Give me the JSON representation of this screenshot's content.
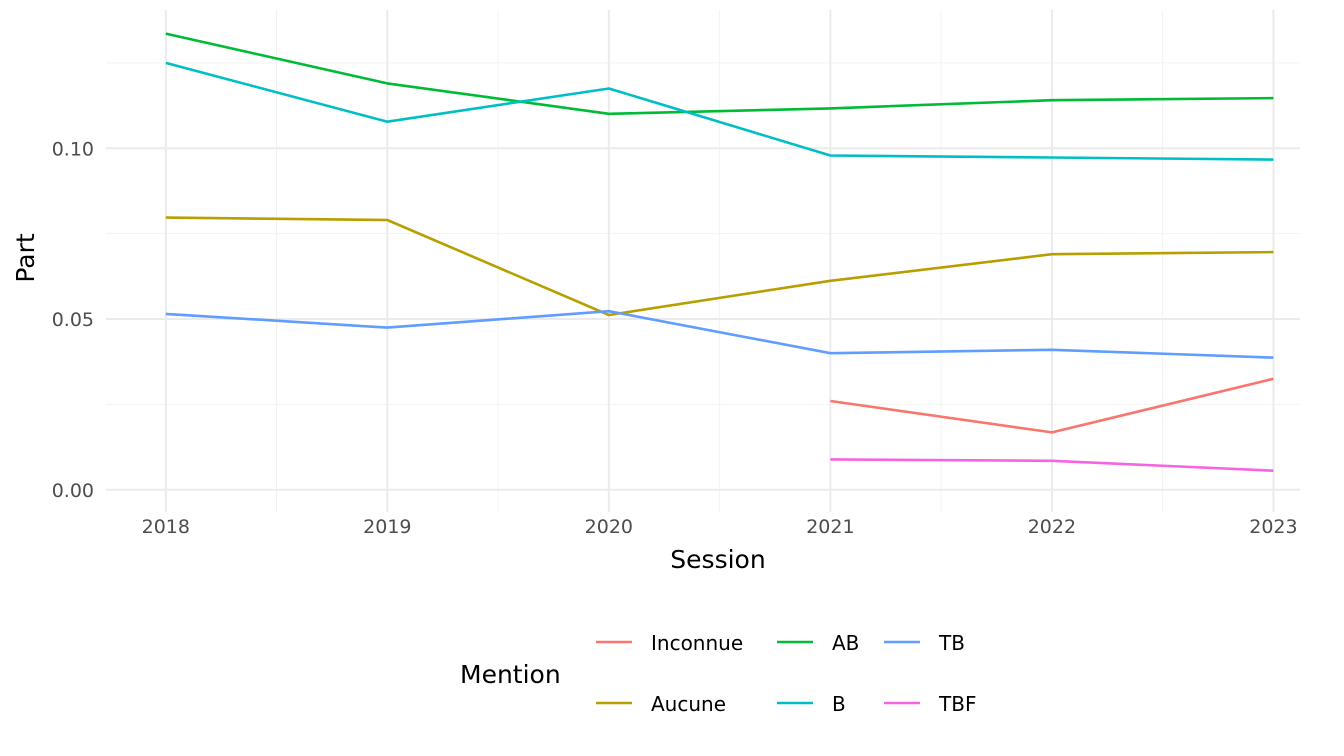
{
  "chart_data": {
    "type": "line",
    "xlabel": "Session",
    "ylabel": "Part",
    "x": [
      2018,
      2019,
      2020,
      2021,
      2022,
      2023
    ],
    "x_tick_labels": [
      "2018",
      "2019",
      "2020",
      "2021",
      "2022",
      "2023"
    ],
    "y_tick_values": [
      0.0,
      0.05,
      0.1
    ],
    "y_tick_labels": [
      "0.00",
      "0.05",
      "0.10"
    ],
    "xlim": [
      2017.73,
      2023.12
    ],
    "ylim": [
      -0.0065,
      0.1405
    ],
    "grid": true,
    "legend": {
      "title": "Mention",
      "position": "bottom",
      "columns": [
        [
          "Inconnue",
          "Aucune"
        ],
        [
          "AB",
          "B"
        ],
        [
          "TB",
          "TBF"
        ]
      ]
    },
    "series": [
      {
        "name": "Inconnue",
        "color": "#F8766D",
        "values": [
          null,
          null,
          null,
          0.026,
          0.0168,
          0.0325
        ]
      },
      {
        "name": "Aucune",
        "color": "#B79F00",
        "values": [
          0.0797,
          0.079,
          0.0512,
          0.0612,
          0.069,
          0.0696
        ]
      },
      {
        "name": "AB",
        "color": "#00BA38",
        "values": [
          0.1336,
          0.119,
          0.1101,
          0.1117,
          0.1141,
          0.1147
        ]
      },
      {
        "name": "B",
        "color": "#00BFC4",
        "values": [
          0.125,
          0.1078,
          0.1175,
          0.0979,
          0.0973,
          0.0967
        ]
      },
      {
        "name": "TB",
        "color": "#619CFF",
        "values": [
          0.0515,
          0.0475,
          0.0523,
          0.04,
          0.041,
          0.0387
        ]
      },
      {
        "name": "TBF",
        "color": "#F564E3",
        "values": [
          null,
          null,
          null,
          0.0089,
          0.0085,
          0.0056
        ]
      }
    ]
  }
}
